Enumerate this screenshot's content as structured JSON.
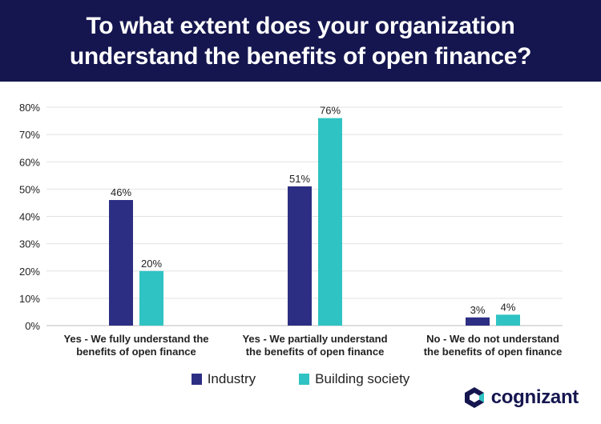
{
  "title_lines": [
    "To what extent does your organization",
    "understand the benefits of open finance?"
  ],
  "brand": {
    "name": "cognizant",
    "color": "#15164f",
    "accent": "#2fc3c3"
  },
  "chart_data": {
    "type": "bar",
    "categories": [
      [
        "Yes - We fully understand the",
        "benefits of open finance"
      ],
      [
        "Yes - We partially understand",
        "the benefits of open finance"
      ],
      [
        "No - We do not understand",
        "the benefits of open finance"
      ]
    ],
    "series": [
      {
        "name": "Industry",
        "values": [
          46,
          51,
          3
        ],
        "labels": [
          "46%",
          "51%",
          "3%"
        ],
        "color": "#2c2e83"
      },
      {
        "name": "Building society",
        "values": [
          20,
          76,
          4
        ],
        "labels": [
          "20%",
          "76%",
          "4%"
        ],
        "color": "#2fc3c3"
      }
    ],
    "y_ticks": [
      0,
      10,
      20,
      30,
      40,
      50,
      60,
      70,
      80
    ],
    "y_tick_labels": [
      "0%",
      "10%",
      "20%",
      "30%",
      "40%",
      "50%",
      "60%",
      "70%",
      "80%"
    ],
    "ylim": [
      0,
      80
    ],
    "grid": true,
    "legend_position": "bottom"
  }
}
